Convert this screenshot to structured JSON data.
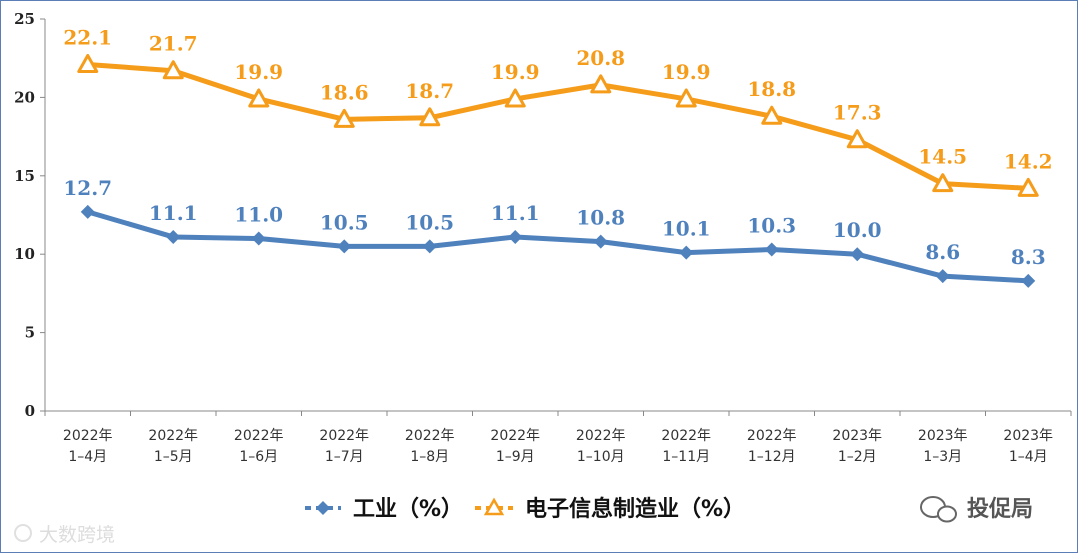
{
  "chart_data": {
    "type": "line",
    "categories": [
      [
        "2022年",
        "1–4月"
      ],
      [
        "2022年",
        "1–5月"
      ],
      [
        "2022年",
        "1–6月"
      ],
      [
        "2022年",
        "1–7月"
      ],
      [
        "2022年",
        "1–8月"
      ],
      [
        "2022年",
        "1–9月"
      ],
      [
        "2022年",
        "1–10月"
      ],
      [
        "2022年",
        "1–11月"
      ],
      [
        "2022年",
        "1–12月"
      ],
      [
        "2023年",
        "1–2月"
      ],
      [
        "2023年",
        "1–3月"
      ],
      [
        "2023年",
        "1–4月"
      ]
    ],
    "series": [
      {
        "name": "工业（%）",
        "color": "#4f81bd",
        "marker": "diamond",
        "values": [
          12.7,
          11.1,
          11.0,
          10.5,
          10.5,
          11.1,
          10.8,
          10.1,
          10.3,
          10.0,
          8.6,
          8.3
        ],
        "labels": [
          "12.7",
          "11.1",
          "11.0",
          "10.5",
          "10.5",
          "11.1",
          "10.8",
          "10.1",
          "10.3",
          "10.0",
          "8.6",
          "8.3"
        ]
      },
      {
        "name": "电子信息制造业（%）",
        "color": "#f59c1a",
        "marker": "triangle",
        "values": [
          22.1,
          21.7,
          19.9,
          18.6,
          18.7,
          19.9,
          20.8,
          19.9,
          18.8,
          17.3,
          14.5,
          14.2
        ],
        "labels": [
          "22.1",
          "21.7",
          "19.9",
          "18.6",
          "18.7",
          "19.9",
          "20.8",
          "19.9",
          "18.8",
          "17.3",
          "14.5",
          "14.2"
        ]
      }
    ],
    "ylim": [
      0,
      25
    ],
    "yticks": [
      "0",
      "5",
      "10",
      "15",
      "20",
      "25"
    ],
    "legend_position": "bottom",
    "grid": false,
    "title": "",
    "xlabel": "",
    "ylabel": ""
  },
  "watermarks": {
    "left": "大数跨境",
    "right": "投促局"
  }
}
